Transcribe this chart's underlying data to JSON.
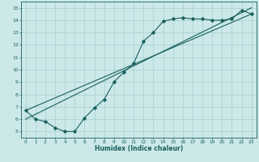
{
  "xlabel": "Humidex (Indice chaleur)",
  "xlim": [
    -0.5,
    23.5
  ],
  "ylim": [
    4.5,
    15.5
  ],
  "xticks": [
    0,
    1,
    2,
    3,
    4,
    5,
    6,
    7,
    8,
    9,
    10,
    11,
    12,
    13,
    14,
    15,
    16,
    17,
    18,
    19,
    20,
    21,
    22,
    23
  ],
  "yticks": [
    5,
    6,
    7,
    8,
    9,
    10,
    11,
    12,
    13,
    14,
    15
  ],
  "bg_color": "#cce8e8",
  "line_color": "#1a5f5f",
  "grid_color": "#aad4d4",
  "data_line": {
    "x": [
      0,
      1,
      2,
      3,
      4,
      5,
      6,
      7,
      8,
      9,
      10,
      11,
      12,
      13,
      14,
      15,
      16,
      17,
      18,
      19,
      20,
      21,
      22,
      23
    ],
    "y": [
      6.7,
      6.0,
      5.8,
      5.3,
      5.0,
      5.0,
      6.1,
      6.9,
      7.6,
      9.0,
      9.8,
      10.5,
      12.3,
      13.0,
      13.9,
      14.1,
      14.2,
      14.1,
      14.1,
      14.0,
      14.0,
      14.1,
      14.8,
      14.5
    ]
  },
  "line1": {
    "x": [
      0,
      23
    ],
    "y": [
      6.7,
      14.5
    ]
  },
  "line2": {
    "x": [
      0,
      23
    ],
    "y": [
      6.0,
      15.0
    ]
  }
}
